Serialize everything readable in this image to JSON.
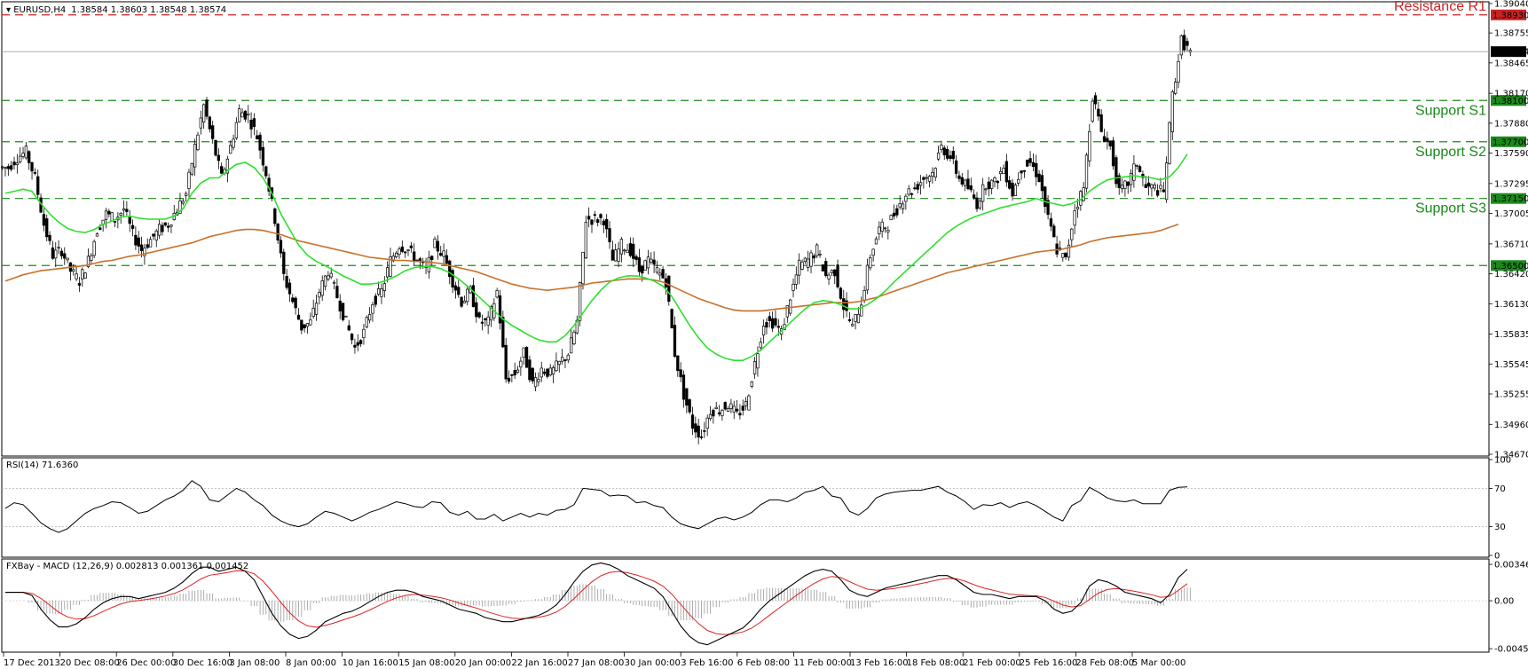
{
  "window": {
    "title": "EURUSD,H4",
    "ohlc": "1.38584 1.38603 1.38548 1.38574"
  },
  "colors": {
    "resistance": "#cc2222",
    "support": "#1a8a1a",
    "ma_fast": "#2ee02e",
    "ma_slow": "#c8702a",
    "macd_signal": "#dd2222",
    "current_price_bg": "#000000"
  },
  "chart_data": [
    {
      "type": "candlestick",
      "symbol": "EURUSD",
      "timeframe": "H4",
      "ylim": [
        1.3467,
        1.3904
      ],
      "y_ticks": [
        "1.39040",
        "1.38755",
        "1.38465",
        "1.38170",
        "1.37880",
        "1.37590",
        "1.37295",
        "1.37005",
        "1.36710",
        "1.36420",
        "1.36130",
        "1.35835",
        "1.35545",
        "1.35255",
        "1.34960",
        "1.34670"
      ],
      "x_ticks": [
        "17 Dec 2013",
        "20 Dec 08:00",
        "26 Dec 00:00",
        "30 Dec 16:00",
        "3 Jan 08:00",
        "8 Jan 00:00",
        "10 Jan 16:00",
        "15 Jan 08:00",
        "20 Jan 00:00",
        "22 Jan 16:00",
        "27 Jan 08:00",
        "30 Jan 00:00",
        "3 Feb 16:00",
        "6 Feb 08:00",
        "11 Feb 00:00",
        "13 Feb 16:00",
        "18 Feb 08:00",
        "21 Feb 00:00",
        "25 Feb 16:00",
        "28 Feb 08:00",
        "5 Mar 00:00"
      ],
      "current_price": 1.38574,
      "current_price_label": "1.38574",
      "levels": [
        {
          "name": "Resistance R1",
          "value": 1.3893,
          "label": "1.38930",
          "kind": "resistance"
        },
        {
          "name": "Support S1",
          "value": 1.381,
          "label": "1.38100",
          "kind": "support"
        },
        {
          "name": "Support S2",
          "value": 1.377,
          "label": "1.37700",
          "kind": "support"
        },
        {
          "name": "Support S3",
          "value": 1.3715,
          "label": "1.37150",
          "kind": "support"
        },
        {
          "name": "",
          "value": 1.365,
          "label": "1.36500",
          "kind": "support"
        }
      ],
      "close_path": [
        1.3745,
        1.3755,
        1.376,
        1.3735,
        1.369,
        1.366,
        1.3665,
        1.3645,
        1.3635,
        1.3655,
        1.3685,
        1.37,
        1.3695,
        1.3705,
        1.368,
        1.3665,
        1.3675,
        1.3685,
        1.369,
        1.3705,
        1.372,
        1.3765,
        1.3805,
        1.377,
        1.3735,
        1.3765,
        1.38,
        1.3795,
        1.3775,
        1.374,
        1.3695,
        1.364,
        1.3615,
        1.359,
        1.3595,
        1.3625,
        1.3645,
        1.362,
        1.3595,
        1.357,
        1.3585,
        1.3615,
        1.3625,
        1.3655,
        1.367,
        1.3665,
        1.3655,
        1.3645,
        1.367,
        1.366,
        1.3635,
        1.3615,
        1.3625,
        1.3595,
        1.3595,
        1.3625,
        1.354,
        1.3545,
        1.3565,
        1.3535,
        1.355,
        1.3545,
        1.3555,
        1.3565,
        1.3595,
        1.3695,
        1.3695,
        1.3695,
        1.3655,
        1.367,
        1.3665,
        1.3645,
        1.3655,
        1.3645,
        1.3635,
        1.3565,
        1.3525,
        1.3495,
        1.3485,
        1.351,
        1.351,
        1.3515,
        1.3505,
        1.3515,
        1.3555,
        1.3595,
        1.3595,
        1.3585,
        1.362,
        1.365,
        1.3655,
        1.3665,
        1.364,
        1.3645,
        1.361,
        1.359,
        1.3615,
        1.366,
        1.3685,
        1.369,
        1.3705,
        1.372,
        1.3725,
        1.3735,
        1.374,
        1.3765,
        1.3755,
        1.3735,
        1.3725,
        1.371,
        1.373,
        1.373,
        1.3745,
        1.372,
        1.3745,
        1.375,
        1.3735,
        1.3695,
        1.3665,
        1.3655,
        1.3705,
        1.3725,
        1.3815,
        1.378,
        1.3765,
        1.372,
        1.373,
        1.375,
        1.3725,
        1.3725,
        1.372,
        1.3815,
        1.3868,
        1.3857
      ],
      "rsi": {
        "label": "RSI(14) 71.6360",
        "ylim": [
          0,
          100
        ],
        "y_ticks": [
          "100",
          "70",
          "30",
          "0"
        ],
        "levels": [
          70,
          30
        ],
        "values": [
          49,
          55,
          53,
          44,
          34,
          28,
          24,
          28,
          36,
          44,
          49,
          52,
          56,
          55,
          50,
          44,
          46,
          52,
          58,
          62,
          68,
          78,
          72,
          58,
          56,
          63,
          70,
          66,
          58,
          52,
          42,
          36,
          32,
          30,
          33,
          40,
          46,
          44,
          40,
          36,
          40,
          45,
          48,
          52,
          56,
          54,
          51,
          50,
          56,
          55,
          45,
          42,
          46,
          38,
          38,
          43,
          36,
          40,
          44,
          40,
          44,
          42,
          47,
          48,
          53,
          70,
          69,
          68,
          62,
          63,
          62,
          55,
          56,
          52,
          50,
          40,
          33,
          30,
          28,
          33,
          38,
          40,
          37,
          40,
          45,
          53,
          58,
          58,
          56,
          60,
          66,
          68,
          72,
          62,
          60,
          46,
          42,
          49,
          60,
          64,
          66,
          67,
          68,
          68,
          70,
          72,
          66,
          62,
          56,
          48,
          53,
          52,
          55,
          50,
          54,
          56,
          52,
          46,
          40,
          36,
          52,
          57,
          71,
          66,
          60,
          57,
          56,
          58,
          54,
          54,
          54,
          68,
          71,
          71.6
        ]
      },
      "macd": {
        "label": "FXBay - MACD (12,26,9) 0.002813 0.001361 0.001452",
        "ylim": [
          -0.00456,
          0.00364
        ],
        "y_ticks": [
          "0.003464",
          "0.00",
          "-0.004566"
        ],
        "main": [
          0.0008,
          0.0008,
          0.0008,
          0.0005,
          -0.0008,
          -0.0018,
          -0.0025,
          -0.0025,
          -0.0022,
          -0.0016,
          -0.0008,
          -0.0002,
          0.0002,
          0.0004,
          0.0004,
          0.0002,
          0.0004,
          0.0006,
          0.0008,
          0.0012,
          0.0018,
          0.0026,
          0.0032,
          0.0032,
          0.0028,
          0.003,
          0.0032,
          0.0028,
          0.002,
          0.0004,
          -0.0012,
          -0.0024,
          -0.0032,
          -0.0036,
          -0.0034,
          -0.0028,
          -0.002,
          -0.0016,
          -0.0012,
          -0.001,
          -0.0006,
          -0.0001,
          0.0004,
          0.0008,
          0.001,
          0.001,
          0.0008,
          0.0004,
          0.0002,
          0.0,
          -0.0004,
          -0.0008,
          -0.001,
          -0.0012,
          -0.0016,
          -0.0018,
          -0.002,
          -0.002,
          -0.0018,
          -0.0016,
          -0.0014,
          -0.001,
          -0.0004,
          0.0006,
          0.0018,
          0.0028,
          0.0034,
          0.0036,
          0.0034,
          0.003,
          0.0024,
          0.002,
          0.0016,
          0.0012,
          0.0004,
          -0.001,
          -0.0024,
          -0.0034,
          -0.004,
          -0.0042,
          -0.0038,
          -0.0034,
          -0.003,
          -0.0026,
          -0.0018,
          -0.0008,
          0.0,
          0.0006,
          0.0012,
          0.0018,
          0.0024,
          0.0028,
          0.003,
          0.0028,
          0.002,
          0.001,
          0.0006,
          0.0004,
          0.0008,
          0.0012,
          0.0014,
          0.0016,
          0.0018,
          0.002,
          0.0022,
          0.0024,
          0.0024,
          0.002,
          0.0014,
          0.0008,
          0.0006,
          0.0006,
          0.0004,
          0.0002,
          0.0004,
          0.0004,
          0.0004,
          0.0,
          -0.0008,
          -0.0012,
          -0.001,
          -0.0002,
          0.0014,
          0.002,
          0.0018,
          0.0014,
          0.0008,
          0.0006,
          0.0004,
          0.0002,
          -0.0002,
          0.0006,
          0.0022,
          0.003
        ]
      },
      "ma_fast_path": [
        1.372,
        1.3722,
        1.3724,
        1.3722,
        1.371,
        1.37,
        1.3692,
        1.3686,
        1.3683,
        1.3682,
        1.3685,
        1.369,
        1.3693,
        1.3697,
        1.3698,
        1.3696,
        1.3695,
        1.3695,
        1.3695,
        1.3698,
        1.3705,
        1.372,
        1.373,
        1.3735,
        1.3735,
        1.3742,
        1.3748,
        1.375,
        1.3745,
        1.3735,
        1.372,
        1.37,
        1.3685,
        1.367,
        1.366,
        1.3654,
        1.365,
        1.3645,
        1.364,
        1.3636,
        1.3632,
        1.3632,
        1.3633,
        1.3636,
        1.364,
        1.3645,
        1.3648,
        1.3649,
        1.3649,
        1.3647,
        1.3643,
        1.3637,
        1.363,
        1.3622,
        1.3614,
        1.3606,
        1.3598,
        1.3592,
        1.3587,
        1.3582,
        1.3578,
        1.3576,
        1.3576,
        1.3582,
        1.3592,
        1.3604,
        1.3616,
        1.3626,
        1.3634,
        1.3638,
        1.364,
        1.364,
        1.3638,
        1.3635,
        1.363,
        1.362,
        1.3606,
        1.3592,
        1.358,
        1.357,
        1.3564,
        1.356,
        1.3558,
        1.3558,
        1.3562,
        1.3568,
        1.3576,
        1.3584,
        1.3592,
        1.36,
        1.3608,
        1.3614,
        1.3616,
        1.3615,
        1.3612,
        1.3608,
        1.3608,
        1.3612,
        1.3618,
        1.3625,
        1.3634,
        1.3642,
        1.365,
        1.3658,
        1.3666,
        1.3674,
        1.3682,
        1.3688,
        1.3693,
        1.3697,
        1.37,
        1.3703,
        1.3706,
        1.3708,
        1.371,
        1.3712,
        1.3715,
        1.3712,
        1.371,
        1.3708,
        1.371,
        1.3714,
        1.3722,
        1.3728,
        1.3733,
        1.3735,
        1.3736,
        1.3737,
        1.3736,
        1.3735,
        1.3733,
        1.3736,
        1.3745,
        1.3758
      ],
      "ma_slow_path": [
        1.3635,
        1.3638,
        1.3641,
        1.3643,
        1.3645,
        1.3646,
        1.3647,
        1.3648,
        1.3649,
        1.365,
        1.3652,
        1.3654,
        1.3655,
        1.3657,
        1.3659,
        1.366,
        1.3662,
        1.3664,
        1.3666,
        1.3668,
        1.367,
        1.3672,
        1.3675,
        1.3678,
        1.368,
        1.3682,
        1.3684,
        1.3685,
        1.3685,
        1.3684,
        1.3682,
        1.368,
        1.3677,
        1.3674,
        1.3672,
        1.367,
        1.3668,
        1.3666,
        1.3664,
        1.3662,
        1.366,
        1.3658,
        1.3657,
        1.3656,
        1.3655,
        1.3655,
        1.3654,
        1.3654,
        1.3653,
        1.3652,
        1.365,
        1.3648,
        1.3646,
        1.3644,
        1.3641,
        1.3638,
        1.3635,
        1.3632,
        1.363,
        1.3628,
        1.3627,
        1.3626,
        1.3627,
        1.3628,
        1.3629,
        1.3631,
        1.3633,
        1.3634,
        1.3635,
        1.3636,
        1.3637,
        1.3637,
        1.3637,
        1.3636,
        1.3634,
        1.363,
        1.3626,
        1.3622,
        1.3618,
        1.3615,
        1.3612,
        1.3609,
        1.3607,
        1.3606,
        1.3606,
        1.3606,
        1.3607,
        1.3608,
        1.3609,
        1.361,
        1.3611,
        1.3612,
        1.3613,
        1.3614,
        1.3614,
        1.3614,
        1.3615,
        1.3617,
        1.3619,
        1.3622,
        1.3625,
        1.3628,
        1.3631,
        1.3634,
        1.3637,
        1.364,
        1.3643,
        1.3645,
        1.3647,
        1.3649,
        1.3651,
        1.3653,
        1.3655,
        1.3657,
        1.3659,
        1.3661,
        1.3663,
        1.3664,
        1.3665,
        1.3666,
        1.3668,
        1.367,
        1.3673,
        1.3675,
        1.3677,
        1.3678,
        1.3679,
        1.368,
        1.3681,
        1.3682,
        1.3684,
        1.3687,
        1.369
      ]
    }
  ]
}
